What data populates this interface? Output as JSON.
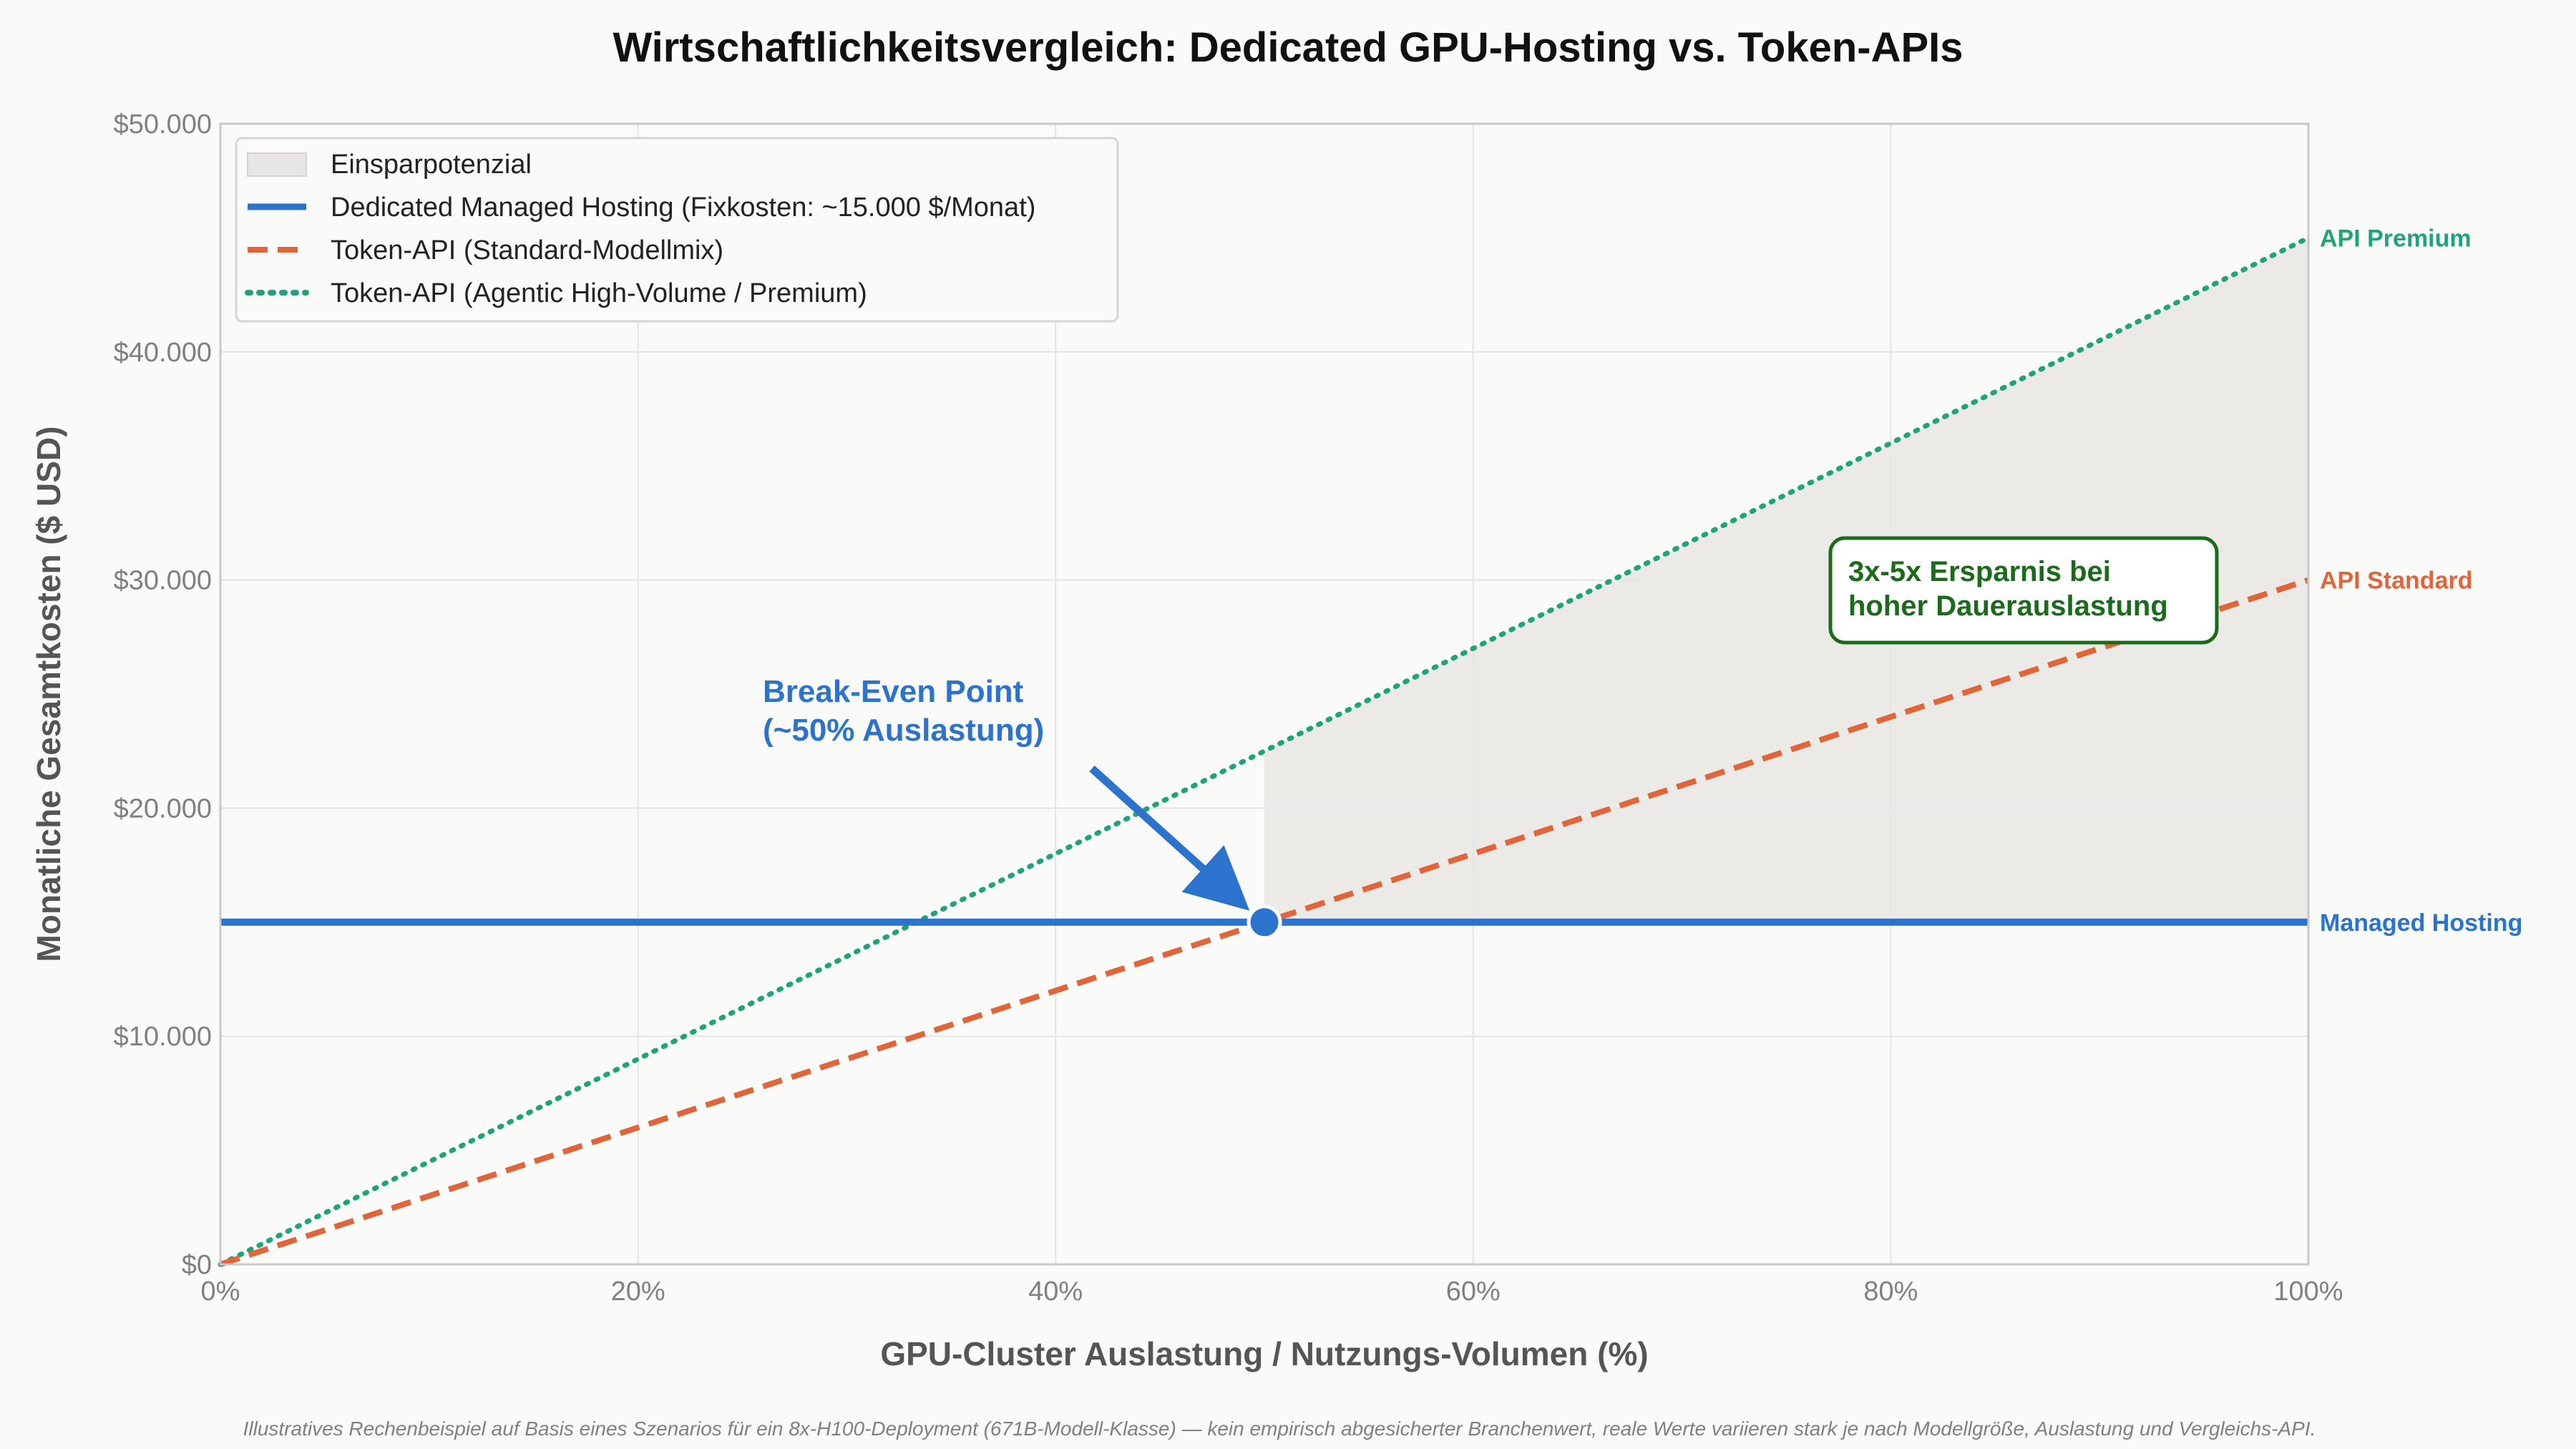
{
  "colors": {
    "managed": "#2b73cc",
    "standard": "#e0653a",
    "premium": "#1fa37a",
    "savings_fill": "#e8e6e4",
    "callout": "#1a6b1a"
  },
  "chart_data": {
    "type": "line",
    "title": "Wirtschaftlichkeitsvergleich: Dedicated GPU-Hosting vs. Token-APIs",
    "xlabel": "GPU-Cluster Auslastung / Nutzungs-Volumen (%)",
    "ylabel": "Monatliche Gesamtkosten ($ USD)",
    "xlim": [
      0,
      100
    ],
    "ylim": [
      0,
      50000
    ],
    "x_ticks": [
      0,
      20,
      40,
      60,
      80,
      100
    ],
    "x_tick_labels": [
      "0%",
      "20%",
      "40%",
      "60%",
      "80%",
      "100%"
    ],
    "y_ticks": [
      0,
      10000,
      20000,
      30000,
      40000,
      50000
    ],
    "y_tick_labels": [
      "$0",
      "$10.000",
      "$20.000",
      "$30.000",
      "$40.000",
      "$50.000"
    ],
    "grid": true,
    "legend_position": "top-left",
    "series": [
      {
        "key": "managed",
        "name": "Dedicated Managed Hosting (Fixkosten: ~15.000 $/Monat)",
        "end_label": "Managed Hosting",
        "style": "solid",
        "x": [
          0,
          100
        ],
        "y": [
          15000,
          15000
        ]
      },
      {
        "key": "standard",
        "name": "Token-API (Standard-Modellmix)",
        "end_label": "API Standard",
        "style": "dashed",
        "x": [
          0,
          100
        ],
        "y": [
          0,
          30000
        ]
      },
      {
        "key": "premium",
        "name": "Token-API (Agentic High-Volume / Premium)",
        "end_label": "API Premium",
        "style": "dotted",
        "x": [
          0,
          100
        ],
        "y": [
          0,
          45000
        ]
      }
    ],
    "savings_area": {
      "name": "Einsparpotenzial",
      "x": [
        50,
        100
      ]
    },
    "break_even": {
      "x": 50,
      "y": 15000,
      "label_line1": "Break-Even Point",
      "label_line2": "(~50% Auslastung)"
    },
    "callout": {
      "line1": "3x-5x Ersparnis bei",
      "line2": "hoher Dauerauslastung"
    },
    "footnote": "Illustratives Rechenbeispiel auf Basis eines Szenarios für ein 8x-H100-Deployment (671B-Modell-Klasse) — kein empirisch abgesicherter Branchenwert, reale Werte variieren stark je nach Modellgröße, Auslastung und Vergleichs-API."
  }
}
